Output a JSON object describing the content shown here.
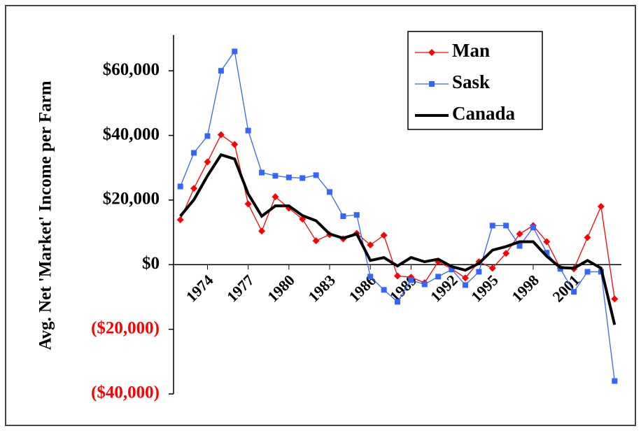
{
  "chart_data": {
    "type": "line",
    "y_label": "Avg. Net 'Market' Income per Farm",
    "x": [
      1972,
      1973,
      1974,
      1975,
      1976,
      1977,
      1978,
      1979,
      1980,
      1981,
      1982,
      1983,
      1984,
      1985,
      1986,
      1987,
      1988,
      1989,
      1990,
      1991,
      1992,
      1993,
      1994,
      1995,
      1996,
      1997,
      1998,
      1999,
      2000,
      2001,
      2002,
      2003,
      2004
    ],
    "series": [
      {
        "name": "Man",
        "color": "#ff0000",
        "marker": "diamond",
        "values": [
          13900,
          23600,
          31800,
          40200,
          37200,
          18800,
          10400,
          21000,
          17500,
          14100,
          7400,
          9300,
          8000,
          9700,
          6100,
          9100,
          -3500,
          -3900,
          -5600,
          900,
          -1300,
          -4100,
          900,
          -1100,
          3500,
          9500,
          12100,
          7100,
          -1100,
          -1300,
          8400,
          18000,
          -10600
        ]
      },
      {
        "name": "Sask",
        "color": "#3366ff",
        "marker": "square",
        "values": [
          24200,
          34600,
          39800,
          60000,
          66000,
          41500,
          28500,
          27500,
          27000,
          26800,
          27700,
          22500,
          15000,
          15400,
          -3700,
          -7800,
          -11500,
          -4800,
          -6100,
          -3700,
          -1500,
          -6300,
          -2200,
          12100,
          12100,
          5800,
          11500,
          3700,
          -1300,
          -8400,
          -2200,
          -2200,
          -36000
        ]
      },
      {
        "name": "Canada",
        "color": "#000000",
        "marker": "none",
        "values": [
          15000,
          20100,
          27500,
          34000,
          32700,
          21900,
          15000,
          18200,
          18200,
          15200,
          13600,
          9500,
          8200,
          9500,
          1300,
          2200,
          -400,
          2200,
          900,
          1700,
          -600,
          -1700,
          400,
          4500,
          5600,
          7100,
          7100,
          2600,
          -900,
          -1100,
          1300,
          -1100,
          -18600
        ]
      }
    ],
    "xlim": [
      1971.5,
      2004.5
    ],
    "xticks": [
      1974,
      1977,
      1980,
      1983,
      1986,
      1989,
      1992,
      1995,
      1998,
      2001
    ],
    "ylim": [
      -40000,
      70000
    ],
    "yticks": [
      {
        "value": -40000,
        "label": "($40,000)"
      },
      {
        "value": -20000,
        "label": "($20,000)"
      },
      {
        "value": 0,
        "label": "$0"
      },
      {
        "value": 20000,
        "label": "$20,000"
      },
      {
        "value": 40000,
        "label": "$40,000"
      },
      {
        "value": 60000,
        "label": "$60,000"
      }
    ],
    "negative_tick_color": "#ff0000",
    "legend": "top-right"
  }
}
